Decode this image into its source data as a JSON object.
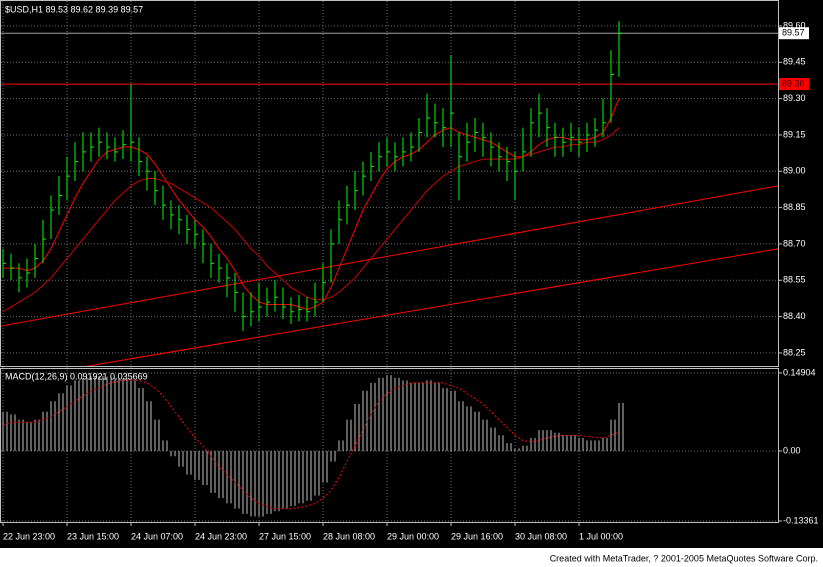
{
  "chart_data": [
    {
      "type": "ohlc",
      "title": "$USD,H1  89.53 89.62 89.39 89.57",
      "categories": [
        "22 Jun 23:00",
        null,
        null,
        null,
        null,
        null,
        null,
        null,
        "23 Jun 15:00",
        null,
        null,
        null,
        null,
        null,
        null,
        null,
        "24 Jun 07:00",
        null,
        null,
        null,
        null,
        null,
        null,
        null,
        "24 Jun 23:00",
        null,
        null,
        null,
        null,
        null,
        null,
        null,
        "27 Jun 15:00",
        null,
        null,
        null,
        null,
        null,
        null,
        null,
        "28 Jun 08:00",
        null,
        null,
        null,
        null,
        null,
        null,
        null,
        "29 Jun 00:00",
        null,
        null,
        null,
        null,
        null,
        null,
        null,
        "29 Jun 16:00",
        null,
        null,
        null,
        null,
        null,
        null,
        null,
        "30 Jun 08:00",
        null,
        null,
        null,
        null,
        null,
        null,
        null,
        "1 Jul 00:00",
        null,
        null,
        null,
        null,
        null
      ],
      "high": [
        88.68,
        88.66,
        88.62,
        88.64,
        88.7,
        88.8,
        88.9,
        88.98,
        89.06,
        89.12,
        89.16,
        89.16,
        89.18,
        89.16,
        89.14,
        89.17,
        89.36,
        89.14,
        89.06,
        89.0,
        88.94,
        88.88,
        88.86,
        88.82,
        88.8,
        88.76,
        88.7,
        88.66,
        88.62,
        88.58,
        88.5,
        88.5,
        88.54,
        88.52,
        88.55,
        88.52,
        88.48,
        88.49,
        88.48,
        88.54,
        88.62,
        88.76,
        88.88,
        88.94,
        89.0,
        89.04,
        89.08,
        89.12,
        89.14,
        89.12,
        89.14,
        89.16,
        89.22,
        89.32,
        89.28,
        89.26,
        89.48,
        89.16,
        89.2,
        89.22,
        89.2,
        89.16,
        89.12,
        89.1,
        89.08,
        89.18,
        89.26,
        89.32,
        89.26,
        89.2,
        89.18,
        89.2,
        89.18,
        89.2,
        89.22,
        89.3,
        89.5,
        89.62
      ],
      "low": [
        88.56,
        88.55,
        88.5,
        88.52,
        88.56,
        88.62,
        88.72,
        88.82,
        88.88,
        88.96,
        89.0,
        89.04,
        89.06,
        89.05,
        89.04,
        89.05,
        89.04,
        88.98,
        88.92,
        88.86,
        88.8,
        88.76,
        88.74,
        88.7,
        88.68,
        88.62,
        88.56,
        88.54,
        88.48,
        88.42,
        88.34,
        88.36,
        88.38,
        88.4,
        88.42,
        88.39,
        88.37,
        88.38,
        88.38,
        88.4,
        88.46,
        88.54,
        88.7,
        88.78,
        88.84,
        88.9,
        88.96,
        89.0,
        89.02,
        89.0,
        89.02,
        89.04,
        89.08,
        89.14,
        89.14,
        89.1,
        89.1,
        88.88,
        89.04,
        89.08,
        89.06,
        89.02,
        89.0,
        88.96,
        88.88,
        89.0,
        89.06,
        89.14,
        89.1,
        89.06,
        89.06,
        89.08,
        89.06,
        89.08,
        89.1,
        89.14,
        89.2,
        89.39
      ],
      "close": [
        88.62,
        88.6,
        88.56,
        88.58,
        88.64,
        88.72,
        88.84,
        88.9,
        88.98,
        89.04,
        89.08,
        89.1,
        89.12,
        89.1,
        89.08,
        89.11,
        89.12,
        89.04,
        89.0,
        88.92,
        88.86,
        88.82,
        88.8,
        88.76,
        88.74,
        88.7,
        88.62,
        88.6,
        88.56,
        88.5,
        88.4,
        88.42,
        88.44,
        88.46,
        88.48,
        88.44,
        88.42,
        88.43,
        88.42,
        88.46,
        88.54,
        88.7,
        88.8,
        88.86,
        88.92,
        88.98,
        89.02,
        89.06,
        89.08,
        89.06,
        89.08,
        89.1,
        89.16,
        89.22,
        89.2,
        89.18,
        89.24,
        89.06,
        89.12,
        89.16,
        89.14,
        89.1,
        89.06,
        89.04,
        89.0,
        89.08,
        89.2,
        89.24,
        89.18,
        89.14,
        89.12,
        89.14,
        89.12,
        89.15,
        89.17,
        89.2,
        89.4,
        89.57
      ],
      "color": "#00ff00",
      "moving_averages": [
        {
          "color": "#ff0000",
          "values": [
            88.6,
            88.6,
            88.6,
            88.59,
            88.6,
            88.63,
            88.68,
            88.75,
            88.82,
            88.89,
            88.95,
            89.0,
            89.05,
            89.08,
            89.09,
            89.1,
            89.1,
            89.09,
            89.07,
            89.03,
            88.98,
            88.93,
            88.88,
            88.84,
            88.8,
            88.77,
            88.73,
            88.68,
            88.64,
            88.59,
            88.53,
            88.49,
            88.46,
            88.45,
            88.45,
            88.45,
            88.45,
            88.44,
            88.43,
            88.44,
            88.46,
            88.52,
            88.6,
            88.68,
            88.76,
            88.84,
            88.9,
            88.96,
            89.01,
            89.04,
            89.06,
            89.07,
            89.09,
            89.12,
            89.15,
            89.17,
            89.18,
            89.16,
            89.15,
            89.14,
            89.13,
            89.12,
            89.1,
            89.08,
            89.06,
            89.06,
            89.08,
            89.11,
            89.13,
            89.14,
            89.14,
            89.13,
            89.13,
            89.13,
            89.14,
            89.16,
            89.22,
            89.3
          ]
        },
        {
          "color": "#cc0000",
          "values": [
            88.42,
            88.44,
            88.46,
            88.48,
            88.5,
            88.53,
            88.56,
            88.6,
            88.64,
            88.68,
            88.72,
            88.76,
            88.8,
            88.84,
            88.88,
            88.91,
            88.94,
            88.96,
            88.97,
            88.97,
            88.96,
            88.95,
            88.93,
            88.91,
            88.89,
            88.87,
            88.85,
            88.82,
            88.79,
            88.76,
            88.72,
            88.68,
            88.65,
            88.61,
            88.58,
            88.55,
            88.52,
            88.5,
            88.48,
            88.47,
            88.47,
            88.48,
            88.5,
            88.53,
            88.56,
            88.6,
            88.64,
            88.68,
            88.72,
            88.76,
            88.8,
            88.84,
            88.88,
            88.92,
            88.95,
            88.98,
            89.0,
            89.02,
            89.03,
            89.04,
            89.05,
            89.05,
            89.05,
            89.05,
            89.05,
            89.06,
            89.07,
            89.08,
            89.09,
            89.1,
            89.1,
            89.11,
            89.11,
            89.12,
            89.12,
            89.13,
            89.15,
            89.18
          ]
        }
      ],
      "trendlines": [
        {
          "color": "#ff0000",
          "x": [
            -0.4,
            96.9
          ],
          "y": [
            88.36,
            88.94
          ]
        },
        {
          "color": "#ff0000",
          "x": [
            9.6,
            96.9
          ],
          "y": [
            88.19,
            88.68
          ]
        }
      ],
      "hline": {
        "value": 89.36,
        "color": "#ff0000"
      },
      "current_price": 89.57,
      "ylim": [
        88.196,
        89.703
      ],
      "yticks": [
        {
          "value": 89.6,
          "label": "89.60"
        },
        89.45,
        {
          "value": 89.3,
          "label": "89.30"
        },
        89.15,
        {
          "value": 89.0,
          "label": "89.00"
        },
        88.85,
        {
          "value": 88.7,
          "label": "88.70"
        },
        88.55,
        {
          "value": 88.4,
          "label": "88.40"
        },
        88.25
      ],
      "grid": true
    },
    {
      "type": "macd",
      "title": "MACD(12,26,9)  0.091921  0.035669",
      "histogram": {
        "color": "#c0c0c0",
        "values": [
          0.075,
          0.07,
          0.06,
          0.055,
          0.06,
          0.075,
          0.095,
          0.11,
          0.125,
          0.135,
          0.14,
          0.142,
          0.143,
          0.142,
          0.14,
          0.138,
          0.135,
          0.12,
          0.095,
          0.06,
          0.02,
          -0.01,
          -0.03,
          -0.045,
          -0.055,
          -0.065,
          -0.08,
          -0.09,
          -0.1,
          -0.11,
          -0.12,
          -0.125,
          -0.125,
          -0.12,
          -0.115,
          -0.11,
          -0.105,
          -0.1,
          -0.095,
          -0.085,
          -0.06,
          -0.02,
          0.02,
          0.06,
          0.09,
          0.115,
          0.13,
          0.14,
          0.145,
          0.14,
          0.135,
          0.13,
          0.13,
          0.135,
          0.13,
          0.12,
          0.115,
          0.095,
          0.085,
          0.075,
          0.06,
          0.045,
          0.03,
          0.015,
          0.005,
          0.01,
          0.025,
          0.04,
          0.04,
          0.035,
          0.03,
          0.03,
          0.025,
          0.02,
          0.02,
          0.025,
          0.06,
          0.092
        ]
      },
      "signal": {
        "color": "#ff0000",
        "values": [
          0.05,
          0.055,
          0.055,
          0.055,
          0.055,
          0.06,
          0.065,
          0.075,
          0.085,
          0.095,
          0.105,
          0.115,
          0.12,
          0.128,
          0.132,
          0.135,
          0.136,
          0.135,
          0.13,
          0.12,
          0.105,
          0.085,
          0.065,
          0.045,
          0.025,
          0.01,
          -0.01,
          -0.03,
          -0.045,
          -0.06,
          -0.075,
          -0.09,
          -0.1,
          -0.105,
          -0.11,
          -0.11,
          -0.11,
          -0.108,
          -0.105,
          -0.1,
          -0.09,
          -0.075,
          -0.05,
          -0.02,
          0.01,
          0.04,
          0.07,
          0.095,
          0.11,
          0.12,
          0.125,
          0.13,
          0.13,
          0.13,
          0.13,
          0.13,
          0.125,
          0.12,
          0.11,
          0.1,
          0.09,
          0.075,
          0.06,
          0.045,
          0.03,
          0.02,
          0.018,
          0.02,
          0.025,
          0.028,
          0.03,
          0.03,
          0.03,
          0.028,
          0.026,
          0.025,
          0.03,
          0.036
        ]
      },
      "ylim": [
        -0.1355,
        0.1566
      ],
      "yticks": [
        0.14904,
        {
          "value": 0,
          "label": "0.00"
        },
        -0.13361
      ],
      "grid": true
    }
  ],
  "footer": "Created with MetaTrader, ? 2001-2005 MetaQuotes Software Corp."
}
